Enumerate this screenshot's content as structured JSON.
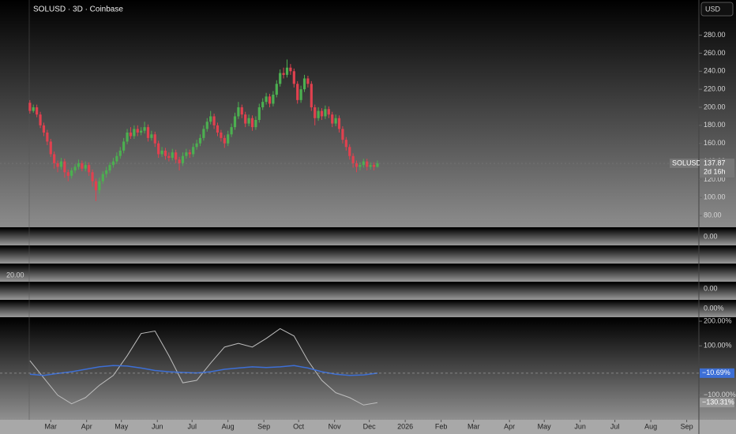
{
  "chart_data": [
    {
      "type": "candlestick",
      "title": "SOLUSD · 3D · Coinbase",
      "currency": "USD",
      "symbol": "SOLUSD",
      "countdown": "2d 16h",
      "up_color": "#4caf50",
      "down_color": "#e0414f",
      "open": [
        205,
        196,
        200,
        192,
        180,
        172,
        162,
        148,
        138,
        134,
        140,
        128,
        124,
        130,
        134,
        138,
        132,
        136,
        128,
        118,
        108,
        118,
        126,
        130,
        136,
        140,
        146,
        152,
        162,
        172,
        168,
        176,
        172,
        174,
        178,
        166,
        170,
        160,
        148,
        152,
        146,
        144,
        150,
        142,
        138,
        146,
        150,
        148,
        156,
        160,
        166,
        176,
        184,
        190,
        180,
        172,
        166,
        160,
        170,
        178,
        190,
        200,
        192,
        182,
        188,
        178,
        186,
        200,
        206,
        212,
        204,
        214,
        226,
        238,
        236,
        244,
        240,
        226,
        208,
        220,
        232,
        226,
        200,
        188,
        196,
        190,
        198,
        192,
        182,
        188,
        176,
        164,
        156,
        146,
        138,
        134,
        136,
        140,
        134,
        136,
        134
      ],
      "high": [
        208,
        203,
        203,
        195,
        183,
        175,
        165,
        151,
        141,
        144,
        143,
        131,
        133,
        137,
        142,
        141,
        140,
        139,
        131,
        121,
        122,
        129,
        134,
        139,
        144,
        150,
        156,
        166,
        176,
        178,
        180,
        180,
        178,
        184,
        181,
        174,
        173,
        163,
        156,
        155,
        150,
        154,
        153,
        145,
        150,
        154,
        153,
        160,
        164,
        170,
        180,
        188,
        196,
        193,
        183,
        175,
        169,
        174,
        182,
        194,
        206,
        203,
        195,
        192,
        191,
        190,
        204,
        210,
        216,
        215,
        218,
        230,
        242,
        244,
        253,
        248,
        243,
        229,
        224,
        236,
        235,
        229,
        203,
        200,
        199,
        202,
        201,
        195,
        192,
        191,
        179,
        167,
        159,
        149,
        141,
        139,
        143,
        143,
        139,
        139,
        141
      ],
      "low": [
        193,
        194,
        189,
        177,
        168,
        158,
        145,
        132,
        128,
        131,
        122,
        118,
        121,
        127,
        131,
        129,
        129,
        124,
        112,
        96,
        104,
        115,
        122,
        127,
        133,
        137,
        143,
        149,
        159,
        165,
        165,
        168,
        169,
        171,
        162,
        163,
        156,
        144,
        145,
        142,
        140,
        141,
        138,
        130,
        135,
        143,
        144,
        145,
        153,
        157,
        163,
        173,
        181,
        176,
        168,
        162,
        155,
        157,
        167,
        175,
        187,
        188,
        178,
        179,
        174,
        175,
        183,
        197,
        203,
        200,
        201,
        211,
        223,
        232,
        233,
        236,
        222,
        204,
        205,
        217,
        222,
        196,
        180,
        185,
        186,
        187,
        188,
        178,
        179,
        172,
        160,
        152,
        142,
        133,
        128,
        130,
        133,
        130,
        131,
        130,
        133
      ],
      "close": [
        196,
        200,
        192,
        180,
        172,
        162,
        148,
        138,
        134,
        140,
        128,
        124,
        130,
        134,
        138,
        132,
        136,
        128,
        118,
        108,
        118,
        126,
        130,
        136,
        140,
        146,
        152,
        162,
        172,
        168,
        176,
        172,
        174,
        178,
        166,
        170,
        160,
        148,
        152,
        146,
        144,
        150,
        142,
        138,
        146,
        150,
        148,
        156,
        160,
        166,
        176,
        184,
        190,
        180,
        172,
        166,
        160,
        170,
        178,
        190,
        200,
        192,
        182,
        188,
        178,
        186,
        200,
        206,
        212,
        204,
        214,
        226,
        238,
        236,
        244,
        240,
        226,
        208,
        220,
        232,
        226,
        200,
        188,
        196,
        190,
        198,
        192,
        182,
        188,
        176,
        164,
        156,
        146,
        138,
        134,
        136,
        140,
        134,
        136,
        134,
        137.87
      ],
      "ylim": [
        67,
        319
      ],
      "yticks": [
        {
          "value": 280,
          "label": "280.00"
        },
        {
          "value": 260,
          "label": "260.00"
        },
        {
          "value": 240,
          "label": "240.00"
        },
        {
          "value": 220,
          "label": "220.00"
        },
        {
          "value": 200,
          "label": "200.00"
        },
        {
          "value": 180,
          "label": "180.00"
        },
        {
          "value": 160,
          "label": "160.00"
        },
        {
          "value": 140,
          "label": "140.00"
        },
        {
          "value": 120,
          "label": "120.00"
        },
        {
          "value": 100,
          "label": "100.00"
        },
        {
          "value": 80,
          "label": "80.00"
        }
      ],
      "xlim": [
        -8.6,
        192.5
      ],
      "xticks": [
        {
          "value": 6,
          "label": "Mar"
        },
        {
          "value": 16.33,
          "label": "Apr"
        },
        {
          "value": 26.33,
          "label": "May"
        },
        {
          "value": 36.67,
          "label": "Jun"
        },
        {
          "value": 46.67,
          "label": "Jul"
        },
        {
          "value": 57,
          "label": "Aug"
        },
        {
          "value": 67.33,
          "label": "Sep"
        },
        {
          "value": 77.33,
          "label": "Oct"
        },
        {
          "value": 87.67,
          "label": "Nov"
        },
        {
          "value": 97.67,
          "label": "Dec"
        },
        {
          "value": 108,
          "label": "2026"
        },
        {
          "value": 118.33,
          "label": "Feb"
        },
        {
          "value": 127.67,
          "label": "Mar"
        },
        {
          "value": 138,
          "label": "Apr"
        },
        {
          "value": 148,
          "label": "May"
        },
        {
          "value": 158.33,
          "label": "Jun"
        },
        {
          "value": 168.33,
          "label": "Jul"
        },
        {
          "value": 178.67,
          "label": "Aug"
        },
        {
          "value": 189,
          "label": "Sep"
        }
      ]
    },
    {
      "type": "line",
      "x": [
        0,
        4,
        8,
        12,
        16,
        20,
        24,
        28,
        32,
        36,
        40,
        44,
        48,
        52,
        56,
        60,
        64,
        68,
        72,
        76,
        80,
        84,
        88,
        92,
        96,
        100
      ],
      "series": [
        {
          "color": "#bdbdbd",
          "last_label": "−130.31%",
          "values": [
            40,
            -30,
            -100,
            -135,
            -110,
            -60,
            -20,
            60,
            150,
            160,
            60,
            -50,
            -40,
            30,
            95,
            110,
            95,
            130,
            170,
            140,
            40,
            -40,
            -90,
            -110,
            -140,
            -130.31
          ]
        },
        {
          "color": "#3d6fd6",
          "last_label": "−10.69%",
          "values": [
            -15,
            -20,
            -12,
            -5,
            5,
            15,
            20,
            18,
            10,
            0,
            -5,
            -8,
            -10,
            -5,
            5,
            10,
            15,
            12,
            15,
            20,
            10,
            -5,
            -15,
            -20,
            -18,
            -10.69
          ]
        }
      ],
      "ylim": [
        -200,
        213
      ],
      "yticks": [
        {
          "value": 200,
          "label": "200.00%"
        },
        {
          "value": 100,
          "label": "100.00%"
        },
        {
          "value": -100,
          "label": "−100.00%"
        }
      ]
    }
  ],
  "pane_labels": [
    "0.00",
    "20.00",
    "0.00",
    "0.00%"
  ]
}
